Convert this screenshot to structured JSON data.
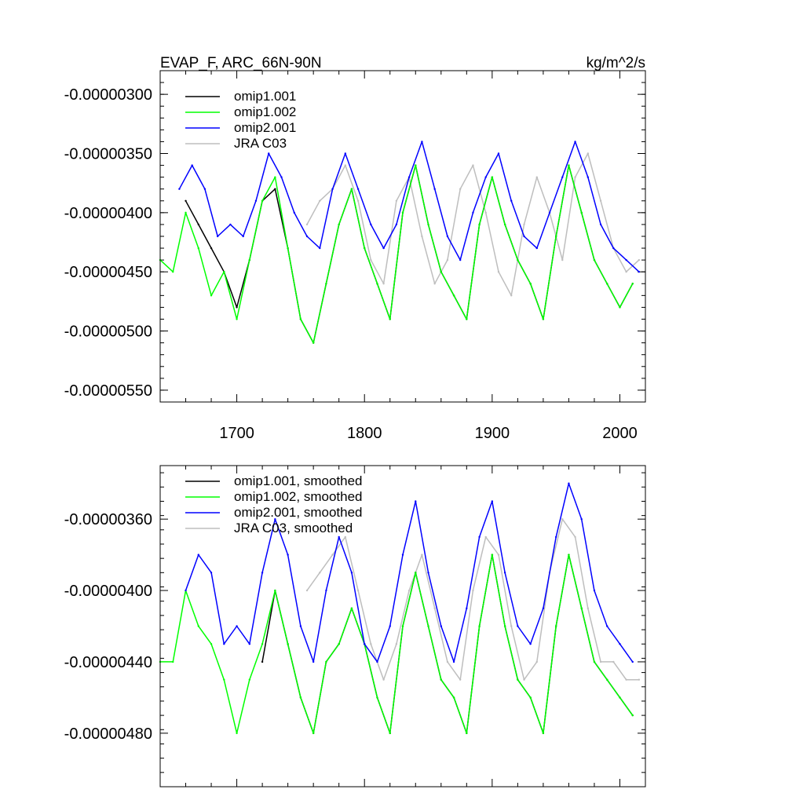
{
  "chart_data": [
    {
      "type": "line",
      "title": "EVAP_F, ARC_66N-90N",
      "units": "kg/m^2/s",
      "xlabel": "",
      "ylabel": "",
      "xlim": [
        1640,
        2020
      ],
      "ylim": [
        -5.6e-06,
        -2.8e-06
      ],
      "grid": false,
      "legend_position": "top-left",
      "x_ticks": [
        1700,
        1800,
        1900,
        2000
      ],
      "x_tick_labels": [
        "1700",
        "1800",
        "1900",
        "2000"
      ],
      "y_ticks": [
        -3e-06,
        -3.5e-06,
        -4e-06,
        -4.5e-06,
        -5e-06,
        -5.5e-06
      ],
      "y_tick_labels": [
        "-0.00000300",
        "-0.00000350",
        "-0.00000400",
        "-0.00000450",
        "-0.00000500",
        "-0.00000550"
      ],
      "series": [
        {
          "name": "omip1.001",
          "color": "#000000",
          "x": [
            1660,
            1670,
            1680,
            1690,
            1700,
            1710,
            1720,
            1730,
            1740,
            1750,
            1760,
            1770,
            1780,
            1790,
            1800,
            1810,
            1820,
            1830,
            1840,
            1850,
            1860,
            1870,
            1880,
            1890,
            1900,
            1910,
            1920,
            1930,
            1940,
            1950,
            1960,
            1970,
            1980,
            1990,
            2000,
            2010
          ],
          "values": [
            -3.9e-06,
            -4.1e-06,
            -4.3e-06,
            -4.5e-06,
            -4.8e-06,
            -4.4e-06,
            -3.9e-06,
            -3.8e-06,
            -4.3e-06,
            -4.9e-06,
            -5.1e-06,
            -4.6e-06,
            -4.1e-06,
            -3.8e-06,
            -4.3e-06,
            -4.6e-06,
            -4.9e-06,
            -4e-06,
            -3.6e-06,
            -4.1e-06,
            -4.5e-06,
            -4.7e-06,
            -4.9e-06,
            -4.1e-06,
            -3.7e-06,
            -4.1e-06,
            -4.4e-06,
            -4.6e-06,
            -4.9e-06,
            -4.2e-06,
            -3.6e-06,
            -4e-06,
            -4.4e-06,
            -4.6e-06,
            -4.8e-06,
            -4.6e-06
          ]
        },
        {
          "name": "omip1.002",
          "color": "#00ff00",
          "x": [
            1640,
            1650,
            1660,
            1670,
            1680,
            1690,
            1700,
            1710,
            1720,
            1730,
            1740,
            1750,
            1760,
            1770,
            1780,
            1790,
            1800,
            1810,
            1820,
            1830,
            1840,
            1850,
            1860,
            1870,
            1880,
            1890,
            1900,
            1910,
            1920,
            1930,
            1940,
            1950,
            1960,
            1970,
            1980,
            1990,
            2000,
            2010
          ],
          "values": [
            -4.4e-06,
            -4.5e-06,
            -4e-06,
            -4.3e-06,
            -4.7e-06,
            -4.5e-06,
            -4.9e-06,
            -4.4e-06,
            -3.9e-06,
            -3.7e-06,
            -4.3e-06,
            -4.9e-06,
            -5.1e-06,
            -4.6e-06,
            -4.1e-06,
            -3.8e-06,
            -4.3e-06,
            -4.6e-06,
            -4.9e-06,
            -4e-06,
            -3.6e-06,
            -4.1e-06,
            -4.5e-06,
            -4.7e-06,
            -4.9e-06,
            -4.1e-06,
            -3.7e-06,
            -4.1e-06,
            -4.4e-06,
            -4.6e-06,
            -4.9e-06,
            -4.2e-06,
            -3.6e-06,
            -4e-06,
            -4.4e-06,
            -4.6e-06,
            -4.8e-06,
            -4.6e-06
          ]
        },
        {
          "name": "omip2.001",
          "color": "#0000ff",
          "x": [
            1655,
            1665,
            1675,
            1685,
            1695,
            1705,
            1715,
            1725,
            1735,
            1745,
            1755,
            1765,
            1775,
            1785,
            1795,
            1805,
            1815,
            1825,
            1835,
            1845,
            1855,
            1865,
            1875,
            1885,
            1895,
            1905,
            1915,
            1925,
            1935,
            1945,
            1955,
            1965,
            1975,
            1985,
            1995,
            2005,
            2015
          ],
          "values": [
            -3.8e-06,
            -3.6e-06,
            -3.8e-06,
            -4.2e-06,
            -4.1e-06,
            -4.2e-06,
            -3.9e-06,
            -3.5e-06,
            -3.7e-06,
            -4e-06,
            -4.2e-06,
            -4.3e-06,
            -3.8e-06,
            -3.5e-06,
            -3.8e-06,
            -4.1e-06,
            -4.3e-06,
            -4.1e-06,
            -3.7e-06,
            -3.4e-06,
            -3.8e-06,
            -4.2e-06,
            -4.4e-06,
            -4e-06,
            -3.7e-06,
            -3.5e-06,
            -3.9e-06,
            -4.2e-06,
            -4.3e-06,
            -4e-06,
            -3.7e-06,
            -3.4e-06,
            -3.7e-06,
            -4.1e-06,
            -4.3e-06,
            -4.4e-06,
            -4.5e-06
          ]
        },
        {
          "name": "JRA C03",
          "color": "#bebebe",
          "x": [
            1755,
            1765,
            1775,
            1785,
            1795,
            1805,
            1815,
            1825,
            1835,
            1845,
            1855,
            1865,
            1875,
            1885,
            1895,
            1905,
            1915,
            1925,
            1935,
            1945,
            1955,
            1965,
            1975,
            1985,
            1995,
            2005,
            2015
          ],
          "values": [
            -4.1e-06,
            -3.9e-06,
            -3.8e-06,
            -3.6e-06,
            -3.9e-06,
            -4.4e-06,
            -4.6e-06,
            -3.9e-06,
            -3.7e-06,
            -4.2e-06,
            -4.6e-06,
            -4.4e-06,
            -3.8e-06,
            -3.6e-06,
            -4e-06,
            -4.5e-06,
            -4.7e-06,
            -4.1e-06,
            -3.7e-06,
            -4e-06,
            -4.4e-06,
            -3.7e-06,
            -3.5e-06,
            -3.9e-06,
            -4.3e-06,
            -4.5e-06,
            -4.4e-06
          ]
        }
      ]
    },
    {
      "type": "line",
      "title": "",
      "xlabel": "",
      "ylabel": "",
      "xlim": [
        1640,
        2020
      ],
      "ylim": [
        -5.1e-06,
        -3.3e-06
      ],
      "grid": false,
      "legend_position": "top-left",
      "x_ticks": [
        1700,
        1800,
        1900,
        2000
      ],
      "y_ticks": [
        -3.6e-06,
        -4e-06,
        -4.4e-06,
        -4.8e-06
      ],
      "y_tick_labels": [
        "-0.00000360",
        "-0.00000400",
        "-0.00000440",
        "-0.00000480"
      ],
      "series": [
        {
          "name": "omip1.001, smoothed",
          "color": "#000000",
          "x": [
            1720,
            1730,
            1740,
            1750,
            1760,
            1770,
            1780,
            1790,
            1800,
            1810,
            1820,
            1830,
            1840,
            1850,
            1860,
            1870,
            1880,
            1890,
            1900,
            1910,
            1920,
            1930,
            1940,
            1950,
            1960,
            1970,
            1980,
            1990,
            2000,
            2010
          ],
          "values": [
            -4.4e-06,
            -4e-06,
            -4.3e-06,
            -4.6e-06,
            -4.8e-06,
            -4.4e-06,
            -4.3e-06,
            -4.1e-06,
            -4.3e-06,
            -4.6e-06,
            -4.8e-06,
            -4.2e-06,
            -3.9e-06,
            -4.2e-06,
            -4.5e-06,
            -4.6e-06,
            -4.8e-06,
            -4.2e-06,
            -3.8e-06,
            -4.2e-06,
            -4.5e-06,
            -4.6e-06,
            -4.8e-06,
            -4.2e-06,
            -3.8e-06,
            -4.1e-06,
            -4.4e-06,
            -4.5e-06,
            -4.6e-06,
            -4.7e-06
          ]
        },
        {
          "name": "omip1.002, smoothed",
          "color": "#00ff00",
          "x": [
            1640,
            1650,
            1660,
            1670,
            1680,
            1690,
            1700,
            1710,
            1720,
            1730,
            1740,
            1750,
            1760,
            1770,
            1780,
            1790,
            1800,
            1810,
            1820,
            1830,
            1840,
            1850,
            1860,
            1870,
            1880,
            1890,
            1900,
            1910,
            1920,
            1930,
            1940,
            1950,
            1960,
            1970,
            1980,
            1990,
            2000,
            2010
          ],
          "values": [
            -4.4e-06,
            -4.4e-06,
            -4e-06,
            -4.2e-06,
            -4.3e-06,
            -4.5e-06,
            -4.8e-06,
            -4.5e-06,
            -4.3e-06,
            -4e-06,
            -4.3e-06,
            -4.6e-06,
            -4.8e-06,
            -4.4e-06,
            -4.3e-06,
            -4.1e-06,
            -4.3e-06,
            -4.6e-06,
            -4.8e-06,
            -4.2e-06,
            -3.9e-06,
            -4.2e-06,
            -4.5e-06,
            -4.6e-06,
            -4.8e-06,
            -4.2e-06,
            -3.8e-06,
            -4.2e-06,
            -4.5e-06,
            -4.6e-06,
            -4.8e-06,
            -4.2e-06,
            -3.8e-06,
            -4.1e-06,
            -4.4e-06,
            -4.5e-06,
            -4.6e-06,
            -4.7e-06
          ]
        },
        {
          "name": "omip2.001, smoothed",
          "color": "#0000ff",
          "x": [
            1660,
            1670,
            1680,
            1690,
            1700,
            1710,
            1720,
            1730,
            1740,
            1750,
            1760,
            1770,
            1780,
            1790,
            1800,
            1810,
            1820,
            1830,
            1840,
            1850,
            1860,
            1870,
            1880,
            1890,
            1900,
            1910,
            1920,
            1930,
            1940,
            1950,
            1960,
            1970,
            1980,
            1990,
            2000,
            2010
          ],
          "values": [
            -4e-06,
            -3.8e-06,
            -3.9e-06,
            -4.3e-06,
            -4.2e-06,
            -4.3e-06,
            -3.9e-06,
            -3.6e-06,
            -3.8e-06,
            -4.2e-06,
            -4.4e-06,
            -4e-06,
            -3.7e-06,
            -3.9e-06,
            -4.3e-06,
            -4.4e-06,
            -4.2e-06,
            -3.8e-06,
            -3.5e-06,
            -3.9e-06,
            -4.2e-06,
            -4.4e-06,
            -4.1e-06,
            -3.7e-06,
            -3.5e-06,
            -3.9e-06,
            -4.2e-06,
            -4.3e-06,
            -4.1e-06,
            -3.7e-06,
            -3.4e-06,
            -3.6e-06,
            -4e-06,
            -4.2e-06,
            -4.3e-06,
            -4.4e-06
          ]
        },
        {
          "name": "JRA C03, smoothed",
          "color": "#bebebe",
          "x": [
            1755,
            1765,
            1775,
            1785,
            1795,
            1805,
            1815,
            1825,
            1835,
            1845,
            1855,
            1865,
            1875,
            1885,
            1895,
            1905,
            1915,
            1925,
            1935,
            1945,
            1955,
            1965,
            1975,
            1985,
            1995,
            2005,
            2015
          ],
          "values": [
            -4e-06,
            -3.9e-06,
            -3.8e-06,
            -3.7e-06,
            -4e-06,
            -4.3e-06,
            -4.5e-06,
            -4.3e-06,
            -4e-06,
            -3.8e-06,
            -4.1e-06,
            -4.4e-06,
            -4.5e-06,
            -4e-06,
            -3.7e-06,
            -3.8e-06,
            -4.2e-06,
            -4.5e-06,
            -4.4e-06,
            -3.9e-06,
            -3.6e-06,
            -3.7e-06,
            -4.1e-06,
            -4.4e-06,
            -4.4e-06,
            -4.5e-06,
            -4.5e-06
          ]
        }
      ]
    }
  ]
}
